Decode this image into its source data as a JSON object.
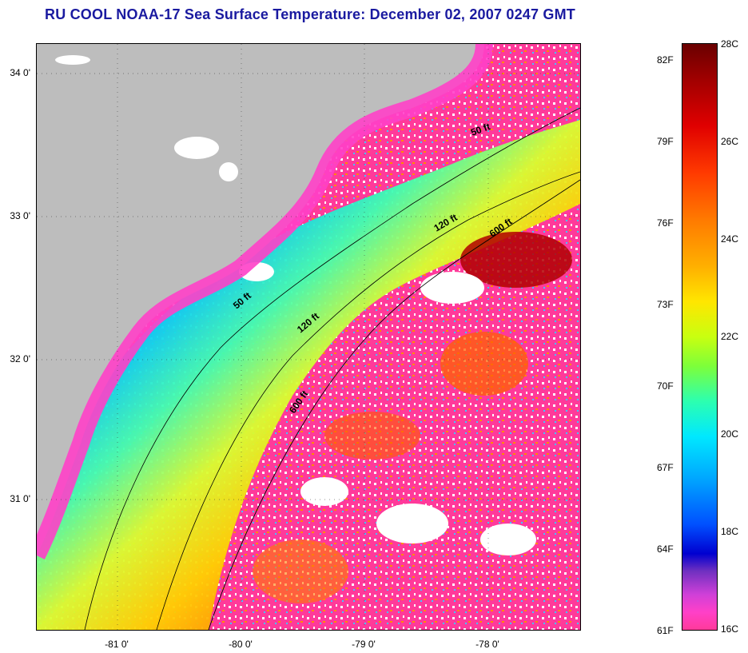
{
  "title": "RU COOL  NOAA-17  Sea Surface Temperature:  December 02, 2007 0247 GMT",
  "map": {
    "y_labels": [
      "34 0'",
      "33 0'",
      "32 0'",
      "31 0'"
    ],
    "x_labels": [
      "-81 0'",
      "-80 0'",
      "-79 0'",
      "-78 0'"
    ],
    "contours": [
      {
        "label": "50 ft"
      },
      {
        "label": "120 ft"
      },
      {
        "label": "600 ft"
      },
      {
        "label": "50 ft"
      },
      {
        "label": "120 ft"
      },
      {
        "label": "600 ft"
      }
    ],
    "colors": {
      "land": "#bdbdbd",
      "cloud": "#ffffff",
      "water_cool": "#ff3a9a"
    }
  },
  "colorbar": {
    "fahrenheit": [
      "82F",
      "79F",
      "76F",
      "73F",
      "70F",
      "67F",
      "64F",
      "61F"
    ],
    "celsius": [
      "28C",
      "26C",
      "24C",
      "22C",
      "20C",
      "18C",
      "16C"
    ]
  }
}
